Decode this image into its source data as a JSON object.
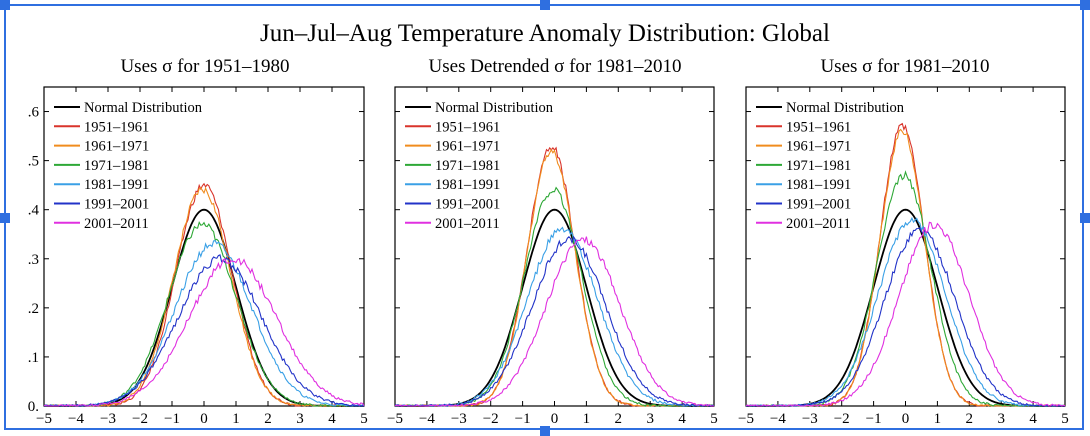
{
  "title": "Jun–Jul–Aug Temperature Anomaly Distribution: Global",
  "colors": {
    "frame": "#2f6fe0",
    "Normal Distribution": "#000000",
    "1951–1961": "#d9342b",
    "1961–1971": "#f08c1e",
    "1971–1981": "#2ea836",
    "1981–1991": "#3aa0e6",
    "1991–2001": "#2233c8",
    "2001–2011": "#e030e0"
  },
  "chart_data": [
    {
      "type": "line",
      "title": "Uses σ for 1951–1980",
      "x_ticks": [
        "−5",
        "−4",
        "−3",
        "−2",
        "−1",
        "0",
        "1",
        "2",
        "3",
        "4",
        "5"
      ],
      "y_ticks": [
        ".6",
        ".5",
        ".4",
        ".3",
        ".2",
        ".1",
        "0."
      ],
      "xlim": [
        -5,
        5
      ],
      "ylim": [
        0,
        0.65
      ],
      "grid": false,
      "legend": "top-left",
      "series": [
        {
          "name": "Normal Distribution",
          "mean": 0.0,
          "sd": 1.0,
          "peak": 0.4
        },
        {
          "name": "1951–1961",
          "mean": 0.0,
          "sd": 0.88,
          "peak": 0.45
        },
        {
          "name": "1961–1971",
          "mean": -0.05,
          "sd": 0.9,
          "peak": 0.44
        },
        {
          "name": "1971–1981",
          "mean": -0.05,
          "sd": 1.05,
          "peak": 0.37
        },
        {
          "name": "1981–1991",
          "mean": 0.3,
          "sd": 1.2,
          "peak": 0.33
        },
        {
          "name": "1991–2001",
          "mean": 0.5,
          "sd": 1.3,
          "peak": 0.3
        },
        {
          "name": "2001–2011",
          "mean": 0.9,
          "sd": 1.35,
          "peak": 0.3
        }
      ]
    },
    {
      "type": "line",
      "title": "Uses Detrended σ for 1981–2010",
      "x_ticks": [
        "−5",
        "−4",
        "−3",
        "−2",
        "−1",
        "0",
        "1",
        "2",
        "3",
        "4",
        "5"
      ],
      "y_ticks": [
        ".6",
        ".5",
        ".4",
        ".3",
        ".2",
        ".1",
        "0."
      ],
      "xlim": [
        -5,
        5
      ],
      "ylim": [
        0,
        0.65
      ],
      "grid": false,
      "legend": "top-left",
      "series": [
        {
          "name": "Normal Distribution",
          "mean": 0.0,
          "sd": 1.0,
          "peak": 0.4
        },
        {
          "name": "1951–1961",
          "mean": -0.1,
          "sd": 0.75,
          "peak": 0.53
        },
        {
          "name": "1961–1971",
          "mean": -0.1,
          "sd": 0.75,
          "peak": 0.52
        },
        {
          "name": "1971–1981",
          "mean": -0.05,
          "sd": 0.9,
          "peak": 0.44
        },
        {
          "name": "1981–1991",
          "mean": 0.25,
          "sd": 1.1,
          "peak": 0.36
        },
        {
          "name": "1991–2001",
          "mean": 0.45,
          "sd": 1.15,
          "peak": 0.34
        },
        {
          "name": "2001–2011",
          "mean": 0.9,
          "sd": 1.15,
          "peak": 0.34
        }
      ]
    },
    {
      "type": "line",
      "title": "Uses σ for 1981–2010",
      "x_ticks": [
        "−5",
        "−4",
        "−3",
        "−2",
        "−1",
        "0",
        "1",
        "2",
        "3",
        "4",
        "5"
      ],
      "y_ticks": [
        ".6",
        ".5",
        ".4",
        ".3",
        ".2",
        ".1",
        "0."
      ],
      "xlim": [
        -5,
        5
      ],
      "ylim": [
        0,
        0.65
      ],
      "grid": false,
      "legend": "top-left",
      "series": [
        {
          "name": "Normal Distribution",
          "mean": 0.0,
          "sd": 1.0,
          "peak": 0.4
        },
        {
          "name": "1951–1961",
          "mean": -0.1,
          "sd": 0.7,
          "peak": 0.57
        },
        {
          "name": "1961–1971",
          "mean": -0.1,
          "sd": 0.7,
          "peak": 0.56
        },
        {
          "name": "1971–1981",
          "mean": -0.05,
          "sd": 0.85,
          "peak": 0.47
        },
        {
          "name": "1981–1991",
          "mean": 0.2,
          "sd": 1.05,
          "peak": 0.38
        },
        {
          "name": "1991–2001",
          "mean": 0.45,
          "sd": 1.1,
          "peak": 0.36
        },
        {
          "name": "2001–2011",
          "mean": 0.9,
          "sd": 1.1,
          "peak": 0.37
        }
      ]
    }
  ]
}
